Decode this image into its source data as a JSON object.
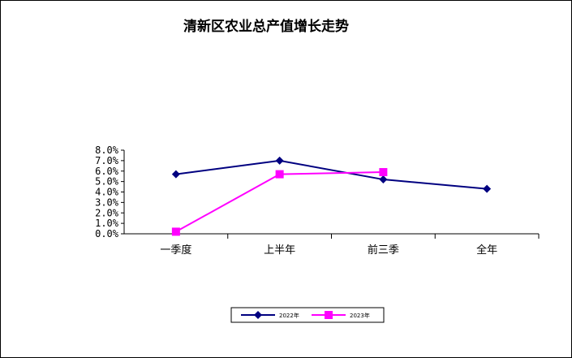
{
  "chart_data": {
    "type": "line",
    "title": "清新区农业总产值增长走势",
    "xlabel": "",
    "ylabel": "",
    "categories": [
      "一季度",
      "上半年",
      "前三季",
      "全年"
    ],
    "ylim": [
      0,
      8
    ],
    "yticks": [
      "0.0%",
      "1.0%",
      "2.0%",
      "3.0%",
      "4.0%",
      "5.0%",
      "6.0%",
      "7.0%",
      "8.0%"
    ],
    "grid": false,
    "legend_position": "bottom",
    "series": [
      {
        "name": "2022年",
        "values": [
          5.7,
          7.0,
          5.2,
          4.3
        ],
        "color": "#000080",
        "marker": "diamond"
      },
      {
        "name": "2023年",
        "values": [
          0.2,
          5.7,
          5.9,
          null
        ],
        "color": "#ff00ff",
        "marker": "square"
      }
    ]
  }
}
